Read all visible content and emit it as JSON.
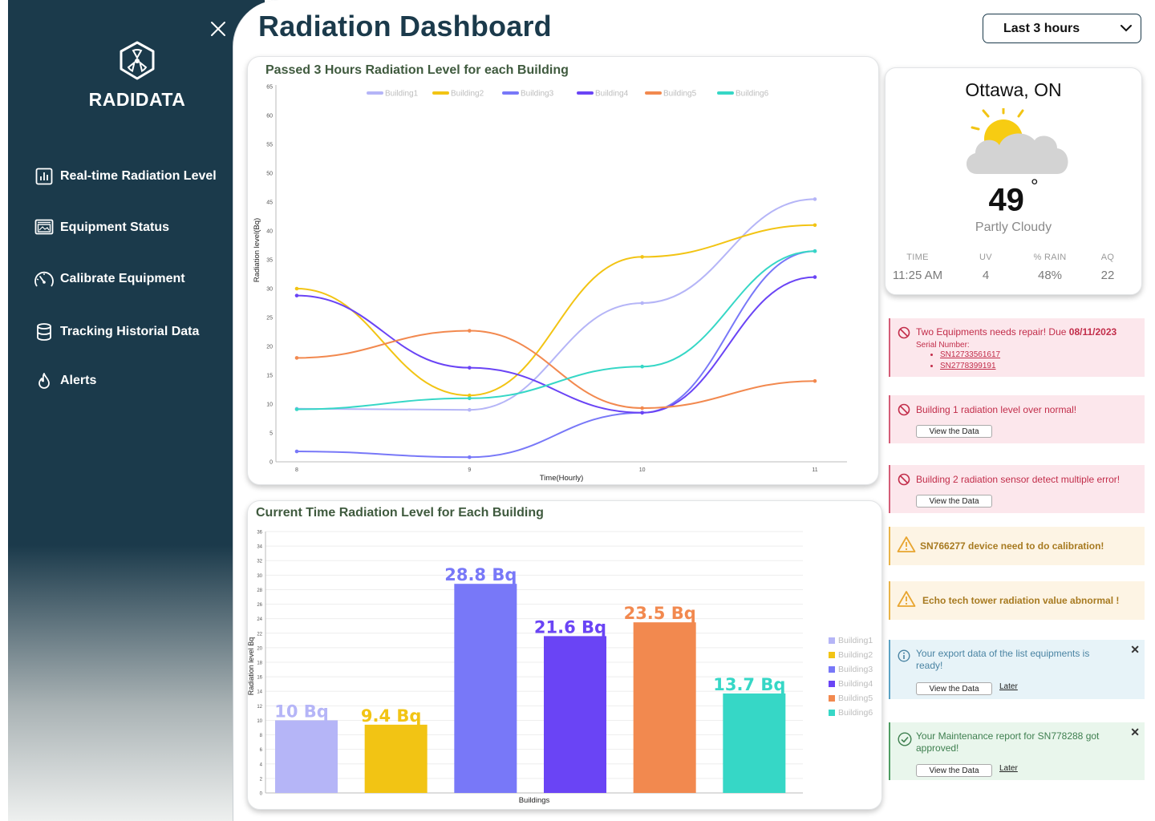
{
  "app": {
    "brand": "RADIDATA",
    "title": "Radiation Dashboard",
    "range": "Last 3 hours"
  },
  "sidebar": {
    "items": [
      {
        "label": "Real-time Radiation Level",
        "icon": "bar-chart-icon"
      },
      {
        "label": "Equipment Status",
        "icon": "monitor-icon"
      },
      {
        "label": "Calibrate Equipment",
        "icon": "gauge-icon"
      },
      {
        "label": "Tracking Historial Data",
        "icon": "database-icon"
      },
      {
        "label": "Alerts",
        "icon": "flame-icon"
      }
    ]
  },
  "weather": {
    "city": "Ottawa, ON",
    "temp": "49",
    "degree": "°",
    "condition": "Partly Cloudy",
    "icon": "partly-cloudy-icon",
    "stats": [
      {
        "key": "TIME",
        "value": "11:25 AM"
      },
      {
        "key": "UV",
        "value": "4"
      },
      {
        "key": "% RAIN",
        "value": "48%"
      },
      {
        "key": "AQ",
        "value": "22"
      }
    ]
  },
  "alerts": {
    "a1": {
      "text": "Two Equipments needs repair! Due ",
      "due": "08/11/2023",
      "serial_label": "Serial Number:",
      "serials": [
        "SN12733561617",
        "SN27783991​91"
      ]
    },
    "a2": {
      "text": "Building 1 radiation level over normal!",
      "button": "View the Data"
    },
    "a3": {
      "text": "Building 2 radiation sensor detect multiple error!",
      "button": "View the Data"
    },
    "a4": {
      "text": "SN766277 device need to do calibration!"
    },
    "a5": {
      "text": "Echo tech tower radiation value abnormal !"
    },
    "a6": {
      "text": "Your export data of the list equipments is ready!",
      "button": "View the Data",
      "later": "Later"
    },
    "a7": {
      "text": "Your Maintenance report for SN778288 got approved!",
      "button": "View the Data",
      "later": "Later"
    }
  },
  "colors": {
    "Building1": "#b5b5f7",
    "Building2": "#f2c414",
    "Building3": "#7878f8",
    "Building4": "#6a44f5",
    "Building5": "#f2894f",
    "Building6": "#36d7c6"
  },
  "chart_data": [
    {
      "type": "line",
      "title": "Passed 3 Hours Radiation Level for each Building",
      "xlabel": "Time(Hourly)",
      "ylabel": "Radiation level(Bq)",
      "x": [
        8,
        9,
        10,
        11
      ],
      "ylim": [
        0,
        65
      ],
      "yticks": [
        0,
        5,
        10,
        15,
        20,
        25,
        30,
        35,
        40,
        45,
        50,
        55,
        60,
        65
      ],
      "legend_position": "top",
      "series": [
        {
          "name": "Building1",
          "values": [
            9.2,
            9.0,
            27.5,
            45.5
          ]
        },
        {
          "name": "Building2",
          "values": [
            30,
            11.5,
            35.5,
            41
          ]
        },
        {
          "name": "Building3",
          "values": [
            1.8,
            0.8,
            8.5,
            36.5
          ]
        },
        {
          "name": "Building4",
          "values": [
            28.8,
            16.3,
            8.5,
            32
          ]
        },
        {
          "name": "Building5",
          "values": [
            18,
            22.7,
            9.3,
            14
          ]
        },
        {
          "name": "Building6",
          "values": [
            9.1,
            11,
            16.5,
            36.5
          ]
        }
      ]
    },
    {
      "type": "bar",
      "title": "Current Time Radiation Level for Each Building",
      "xlabel": "Buildings",
      "ylabel": "Radiation level Bq",
      "ylim": [
        0,
        36
      ],
      "yticks": [
        0,
        2,
        4,
        6,
        8,
        10,
        12,
        14,
        16,
        18,
        20,
        22,
        24,
        26,
        28,
        30,
        32,
        34,
        36
      ],
      "legend_position": "right",
      "categories": [
        "Building1",
        "Building2",
        "Building3",
        "Building4",
        "Building5",
        "Building6"
      ],
      "values": [
        10,
        9.4,
        28.8,
        21.6,
        23.5,
        13.7
      ],
      "data_labels": [
        "10 Bq",
        "9.4 Bq",
        "28.8 Bq",
        "21.6 Bq",
        "23.5 Bq",
        "13.7 Bq"
      ]
    }
  ]
}
